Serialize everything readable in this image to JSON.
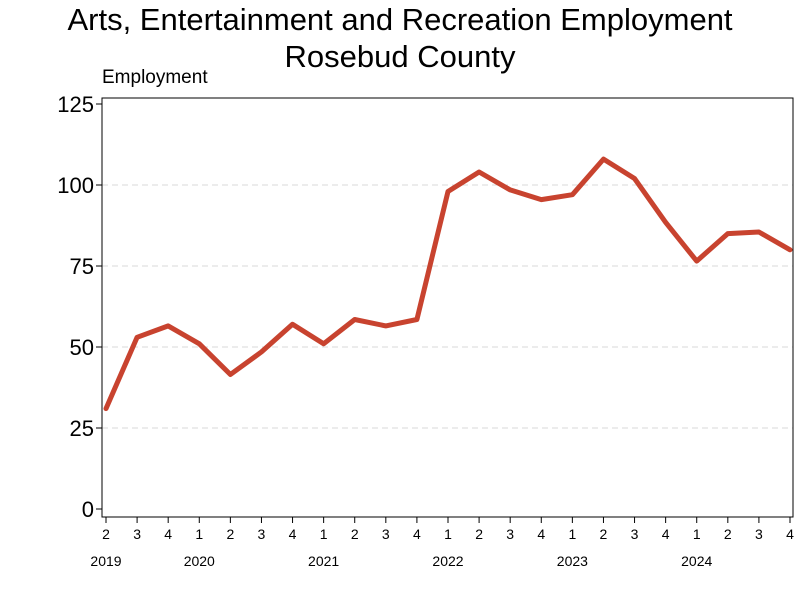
{
  "chart_data": {
    "type": "line",
    "title": "Arts, Entertainment and Recreation Employment",
    "subtitle": "Rosebud County",
    "ylabel": "Employment",
    "xlabel": "",
    "ylim": [
      0,
      125
    ],
    "yticks": [
      0,
      25,
      50,
      75,
      100,
      125
    ],
    "grid": "horizontal dashed",
    "legend": "none",
    "colors": {
      "line": "#c8432f",
      "grid": "#d9d9d9",
      "frame": "#000000"
    },
    "x": [
      "2019-Q2",
      "2019-Q3",
      "2019-Q4",
      "2020-Q1",
      "2020-Q2",
      "2020-Q3",
      "2020-Q4",
      "2021-Q1",
      "2021-Q2",
      "2021-Q3",
      "2021-Q4",
      "2022-Q1",
      "2022-Q2",
      "2022-Q3",
      "2022-Q4",
      "2023-Q1",
      "2023-Q2",
      "2023-Q3",
      "2023-Q4",
      "2024-Q1",
      "2024-Q2",
      "2024-Q3",
      "2024-Q4"
    ],
    "quarter_labels": [
      "2",
      "3",
      "4",
      "1",
      "2",
      "3",
      "4",
      "1",
      "2",
      "3",
      "4",
      "1",
      "2",
      "3",
      "4",
      "1",
      "2",
      "3",
      "4",
      "1",
      "2",
      "3",
      "4"
    ],
    "year_labels": [
      {
        "label": "2019",
        "quarter_index": 0
      },
      {
        "label": "2020",
        "quarter_index": 3
      },
      {
        "label": "2021",
        "quarter_index": 7
      },
      {
        "label": "2022",
        "quarter_index": 11
      },
      {
        "label": "2023",
        "quarter_index": 15
      },
      {
        "label": "2024",
        "quarter_index": 19
      }
    ],
    "series": [
      {
        "values": [
          31,
          53,
          56.5,
          51,
          41.5,
          48.5,
          57,
          51,
          58.5,
          56.5,
          58.5,
          98,
          104,
          98.5,
          95.5,
          97,
          108,
          102,
          88.5,
          76.5,
          85,
          85.5,
          80
        ]
      }
    ]
  }
}
